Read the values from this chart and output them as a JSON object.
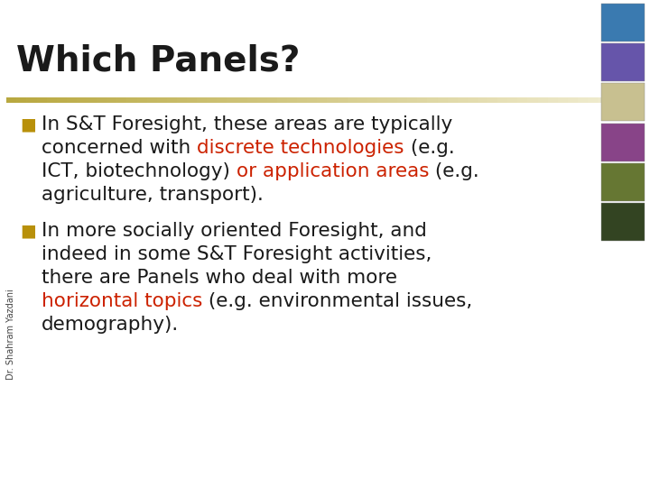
{
  "title": "Which Panels?",
  "title_fontsize": 28,
  "title_color": "#1a1a1a",
  "background_color": "#ffffff",
  "divider_color_left": "#b8a840",
  "divider_color_right": "#e8e0b0",
  "bullet_color": "#b8900a",
  "body_fontsize": 15.5,
  "body_color": "#1a1a1a",
  "red_color": "#cc2200",
  "sidebar_label": "Dr. Shahram Yazdani",
  "sidebar_fontsize": 7,
  "sidebar_color": "#444444",
  "lines_b1": [
    [
      [
        "In S&T Foresight, these areas are typically",
        "#1a1a1a"
      ]
    ],
    [
      [
        "concerned with ",
        "#1a1a1a"
      ],
      [
        "discrete technologies",
        "#cc2200"
      ],
      [
        " (e.g.",
        "#1a1a1a"
      ]
    ],
    [
      [
        "ICT, biotechnology) ",
        "#1a1a1a"
      ],
      [
        "or application areas",
        "#cc2200"
      ],
      [
        " (e.g.",
        "#1a1a1a"
      ]
    ],
    [
      [
        "agriculture, transport).",
        "#1a1a1a"
      ]
    ]
  ],
  "lines_b2": [
    [
      [
        "In more socially oriented Foresight, and",
        "#1a1a1a"
      ]
    ],
    [
      [
        "indeed in some S&T Foresight activities,",
        "#1a1a1a"
      ]
    ],
    [
      [
        "there are Panels who deal with more",
        "#1a1a1a"
      ]
    ],
    [
      [
        "horizontal topics",
        "#cc2200"
      ],
      [
        " (e.g. environmental issues,",
        "#1a1a1a"
      ]
    ],
    [
      [
        "demography).",
        "#1a1a1a"
      ]
    ]
  ]
}
